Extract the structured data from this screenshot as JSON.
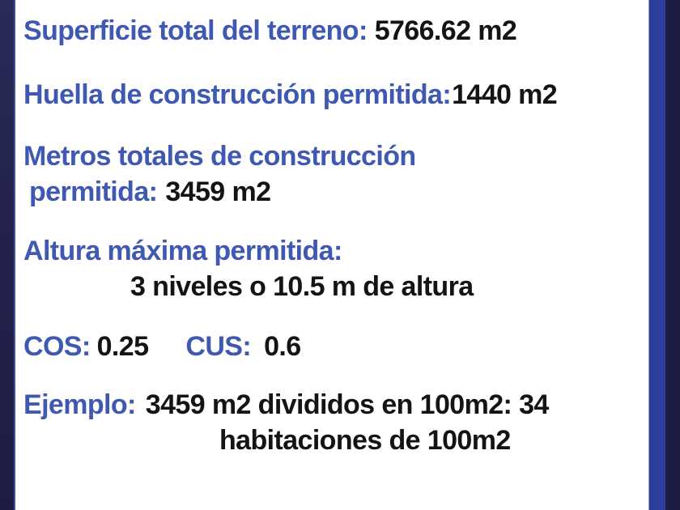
{
  "colors": {
    "accent_blue": "#3f58b2",
    "text_black": "#141414",
    "left_border_navy": "#23234e",
    "right_border_blue": "#2e3e9e",
    "right_border_navy": "#1d1d44",
    "background": "#ffffff"
  },
  "document": {
    "surface": {
      "label": "Superficie total del terreno:",
      "value": "5766.62 m2"
    },
    "footprint": {
      "label": "Huella de construcción permitida:",
      "value": "1440 m2"
    },
    "total_construction": {
      "label_line1": "Metros totales de construcción",
      "label_line2": "permitida:",
      "value": "3459 m2"
    },
    "max_height": {
      "label": "Altura máxima permitida:",
      "value": "3 niveles o 10.5 m de altura"
    },
    "coefficients": {
      "cos_label": "COS:",
      "cos_value": "0.25",
      "cus_label": "CUS:",
      "cus_value": "0.6"
    },
    "example": {
      "label": "Ejemplo:",
      "value_line1": "3459 m2 divididos en 100m2: 34",
      "value_line2": "habitaciones de 100m2"
    }
  }
}
